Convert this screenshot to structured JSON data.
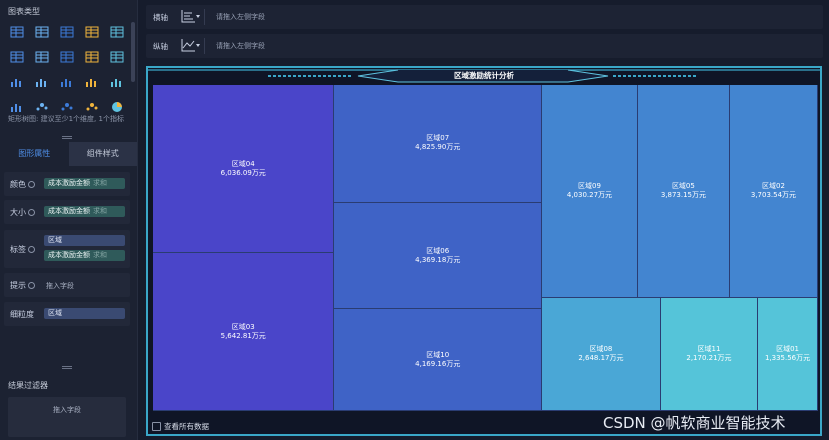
{
  "left_panel": {
    "chart_type_title": "图表类型",
    "chart_icons": [
      "table-icon",
      "cross-table-icon",
      "detail-table-icon",
      "color-table-icon",
      "kpi-card-icon",
      "grouped-table-icon",
      "ranking-table-icon",
      "map-icon",
      "scatter-matrix-icon",
      "combo-bar-icon",
      "bar-chart-icon",
      "stacked-bar-icon",
      "line-area-icon",
      "multi-line-icon",
      "dual-axis-icon",
      "radar-icon",
      "area-chart-icon",
      "scatter-icon",
      "bubble-icon",
      "pie-chart-icon"
    ],
    "hint": "矩形树图: 建议至少1个维度, 1个指标",
    "tabs": {
      "graphic_attributes": "图形属性",
      "component_style": "组件样式"
    },
    "properties": {
      "color": {
        "label": "颜色",
        "field": "成本激励金额",
        "agg": "求和"
      },
      "size": {
        "label": "大小",
        "field": "成本激励金额",
        "agg": "求和"
      },
      "label": {
        "label": "标签",
        "field1": "区域",
        "field2": "成本激励金额",
        "agg": "求和"
      },
      "tooltip": {
        "label": "提示",
        "placeholder": "拖入字段"
      },
      "granularity": {
        "label": "细粒度",
        "field": "区域"
      }
    },
    "filter": {
      "title": "结果过滤器",
      "placeholder": "拖入字段"
    }
  },
  "axes": {
    "x": {
      "label": "横轴",
      "placeholder": "请拖入左侧字段"
    },
    "y": {
      "label": "纵轴",
      "placeholder": "请拖入左侧字段"
    }
  },
  "chart_data": {
    "type": "treemap",
    "title": "区域激励统计分析",
    "items": [
      {
        "name": "区域04",
        "value": 6036.09,
        "label": "6,036.09万元",
        "color": "#4a45c9"
      },
      {
        "name": "区域03",
        "value": 5642.81,
        "label": "5,642.81万元",
        "color": "#4a45c9"
      },
      {
        "name": "区域07",
        "value": 4825.9,
        "label": "4,825.90万元",
        "color": "#3f63c6"
      },
      {
        "name": "区域06",
        "value": 4369.18,
        "label": "4,369.18万元",
        "color": "#3f63c6"
      },
      {
        "name": "区域10",
        "value": 4169.16,
        "label": "4,169.16万元",
        "color": "#3f63c6"
      },
      {
        "name": "区域09",
        "value": 4030.27,
        "label": "4,030.27万元",
        "color": "#4385d0"
      },
      {
        "name": "区域05",
        "value": 3873.15,
        "label": "3,873.15万元",
        "color": "#4385d0"
      },
      {
        "name": "区域02",
        "value": 3703.54,
        "label": "3,703.54万元",
        "color": "#4385d0"
      },
      {
        "name": "区域08",
        "value": 2648.17,
        "label": "2,648.17万元",
        "color": "#4aa7d6"
      },
      {
        "name": "区域11",
        "value": 2170.21,
        "label": "2,170.21万元",
        "color": "#55c4d9"
      },
      {
        "name": "区域01",
        "value": 1335.56,
        "label": "1,335.56万元",
        "color": "#55c4d9"
      }
    ]
  },
  "footer": {
    "see_all": "查看所有数据"
  },
  "watermark": "CSDN @帆软商业智能技术"
}
